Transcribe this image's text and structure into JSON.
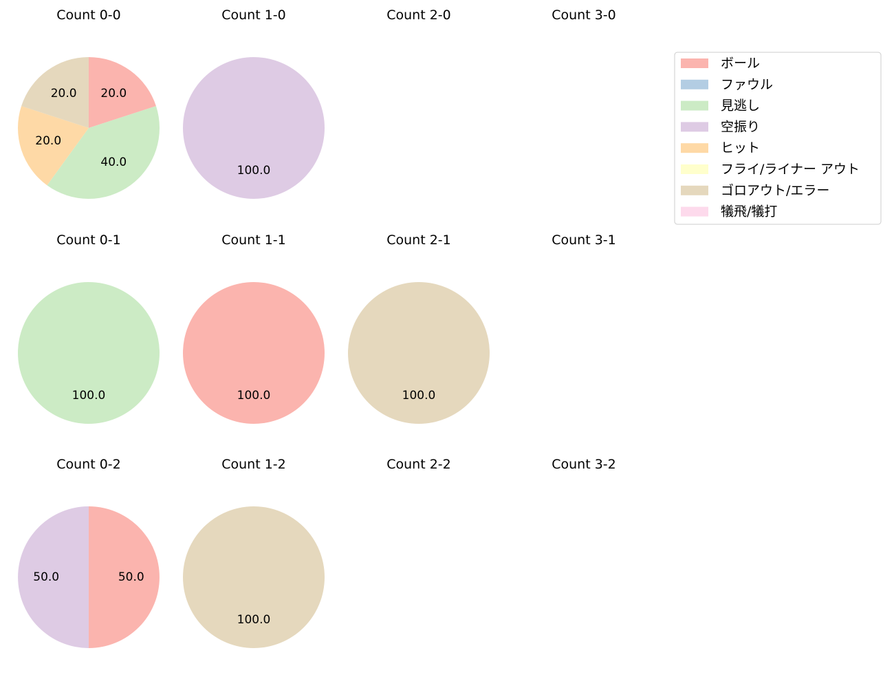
{
  "chart_data": {
    "type": "pie",
    "legend": {
      "placement": "upper-right",
      "entries": [
        {
          "key": "ball",
          "label": "ボール",
          "color": "#fbb4ae"
        },
        {
          "key": "foul",
          "label": "ファウル",
          "color": "#b3cde3"
        },
        {
          "key": "called",
          "label": "見逃し",
          "color": "#ccebc5"
        },
        {
          "key": "swinging",
          "label": "空振り",
          "color": "#decbe4"
        },
        {
          "key": "hit",
          "label": "ヒット",
          "color": "#fed9a6"
        },
        {
          "key": "flyout",
          "label": "フライ/ライナー アウト",
          "color": "#ffffcc"
        },
        {
          "key": "groundout",
          "label": "ゴロアウト/エラー",
          "color": "#e5d8bd"
        },
        {
          "key": "sacrifice",
          "label": "犠飛/犠打",
          "color": "#fddaec"
        }
      ]
    },
    "panels": [
      {
        "title": "Count 0-0",
        "slices": [
          {
            "category": "ball",
            "value": 20.0
          },
          {
            "category": "called",
            "value": 40.0
          },
          {
            "category": "hit",
            "value": 20.0
          },
          {
            "category": "groundout",
            "value": 20.0
          }
        ]
      },
      {
        "title": "Count 1-0",
        "slices": [
          {
            "category": "swinging",
            "value": 100.0
          }
        ]
      },
      {
        "title": "Count 2-0",
        "slices": []
      },
      {
        "title": "Count 3-0",
        "slices": []
      },
      {
        "title": "Count 0-1",
        "slices": [
          {
            "category": "called",
            "value": 100.0
          }
        ]
      },
      {
        "title": "Count 1-1",
        "slices": [
          {
            "category": "ball",
            "value": 100.0
          }
        ]
      },
      {
        "title": "Count 2-1",
        "slices": [
          {
            "category": "groundout",
            "value": 100.0
          }
        ]
      },
      {
        "title": "Count 3-1",
        "slices": []
      },
      {
        "title": "Count 0-2",
        "slices": [
          {
            "category": "ball",
            "value": 50.0
          },
          {
            "category": "swinging",
            "value": 50.0
          }
        ]
      },
      {
        "title": "Count 1-2",
        "slices": [
          {
            "category": "groundout",
            "value": 100.0
          }
        ]
      },
      {
        "title": "Count 2-2",
        "slices": []
      },
      {
        "title": "Count 3-2",
        "slices": []
      }
    ]
  }
}
